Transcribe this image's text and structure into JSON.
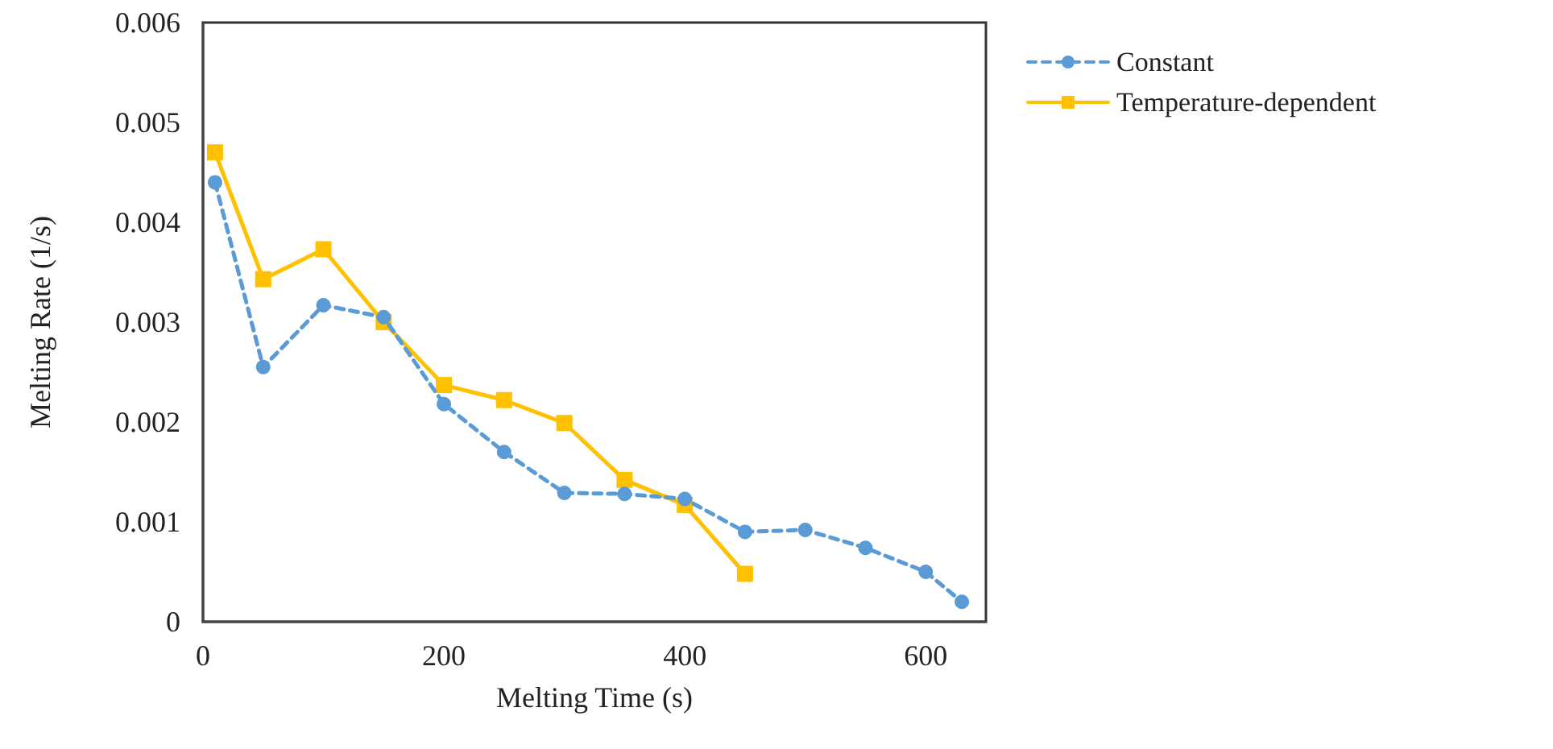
{
  "chart_data": {
    "type": "line",
    "xlabel": "Melting Time (s)",
    "ylabel": "Melting Rate (1/s)",
    "xlim": [
      0,
      650
    ],
    "xticks": [
      0,
      200,
      400,
      600
    ],
    "ylim": [
      0,
      0.006
    ],
    "yticks": [
      0,
      0.001,
      0.002,
      0.003,
      0.004,
      0.005,
      0.006
    ],
    "grid": false,
    "legend": "right",
    "series": [
      {
        "name": "Constant",
        "color": "#5b9bd5",
        "marker": "circle",
        "line_style": "dashed",
        "x": [
          10,
          50,
          100,
          150,
          200,
          250,
          300,
          350,
          400,
          450,
          500,
          550,
          600,
          630
        ],
        "values": [
          0.0044,
          0.00255,
          0.00317,
          0.00305,
          0.00218,
          0.0017,
          0.00129,
          0.00128,
          0.00123,
          0.0009,
          0.00092,
          0.00074,
          0.0005,
          0.0002
        ]
      },
      {
        "name": "Temperature-dependent",
        "color": "#ffc000",
        "marker": "square",
        "line_style": "solid",
        "x": [
          10,
          50,
          100,
          150,
          200,
          250,
          300,
          350,
          400,
          450
        ],
        "values": [
          0.0047,
          0.00343,
          0.00373,
          0.003,
          0.00237,
          0.00222,
          0.00199,
          0.00142,
          0.00117,
          0.00048
        ]
      }
    ]
  }
}
